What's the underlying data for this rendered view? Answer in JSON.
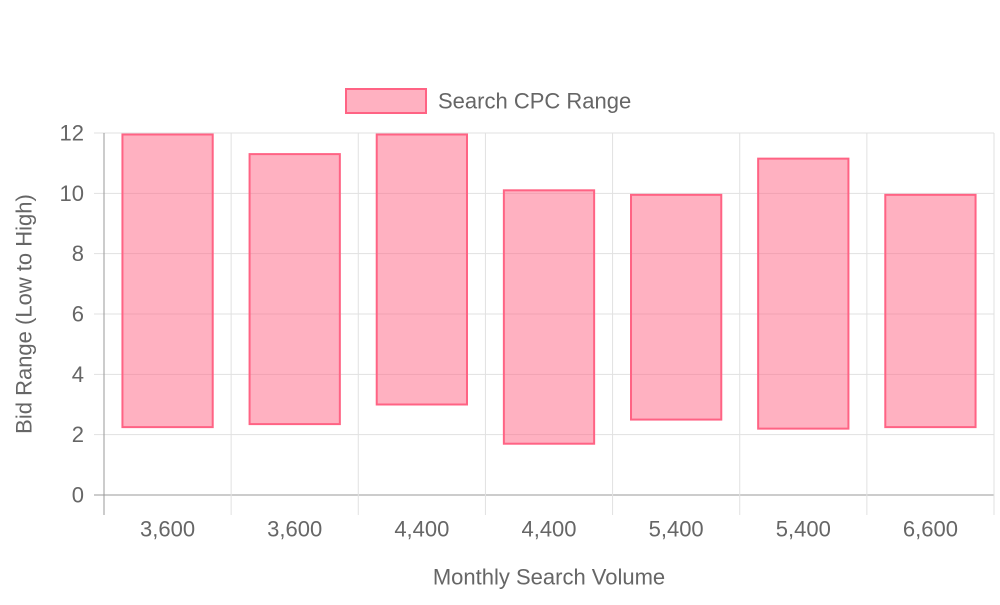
{
  "chart_data": {
    "type": "bar",
    "subtype": "floating-range",
    "categories": [
      "3,600",
      "3,600",
      "4,400",
      "4,400",
      "5,400",
      "5,400",
      "6,600"
    ],
    "series": [
      {
        "name": "Search CPC Range",
        "ranges": [
          [
            2.25,
            11.95
          ],
          [
            2.35,
            11.3
          ],
          [
            3.0,
            11.95
          ],
          [
            1.7,
            10.1
          ],
          [
            2.5,
            9.95
          ],
          [
            2.2,
            11.15
          ],
          [
            2.25,
            9.95
          ]
        ]
      }
    ],
    "xlabel": "Monthly Search Volume",
    "ylabel": "Bid Range (Low to High)",
    "ylim": [
      0,
      12
    ],
    "yticks": [
      0,
      2,
      4,
      6,
      8,
      10,
      12
    ],
    "grid": true,
    "legend": "top-center"
  },
  "colors": {
    "bar_fill": "rgba(255, 99, 132, 0.5)",
    "bar_border": "#ff6384",
    "grid": "#e1e1e1",
    "axis": "#999999",
    "text": "#666666"
  }
}
